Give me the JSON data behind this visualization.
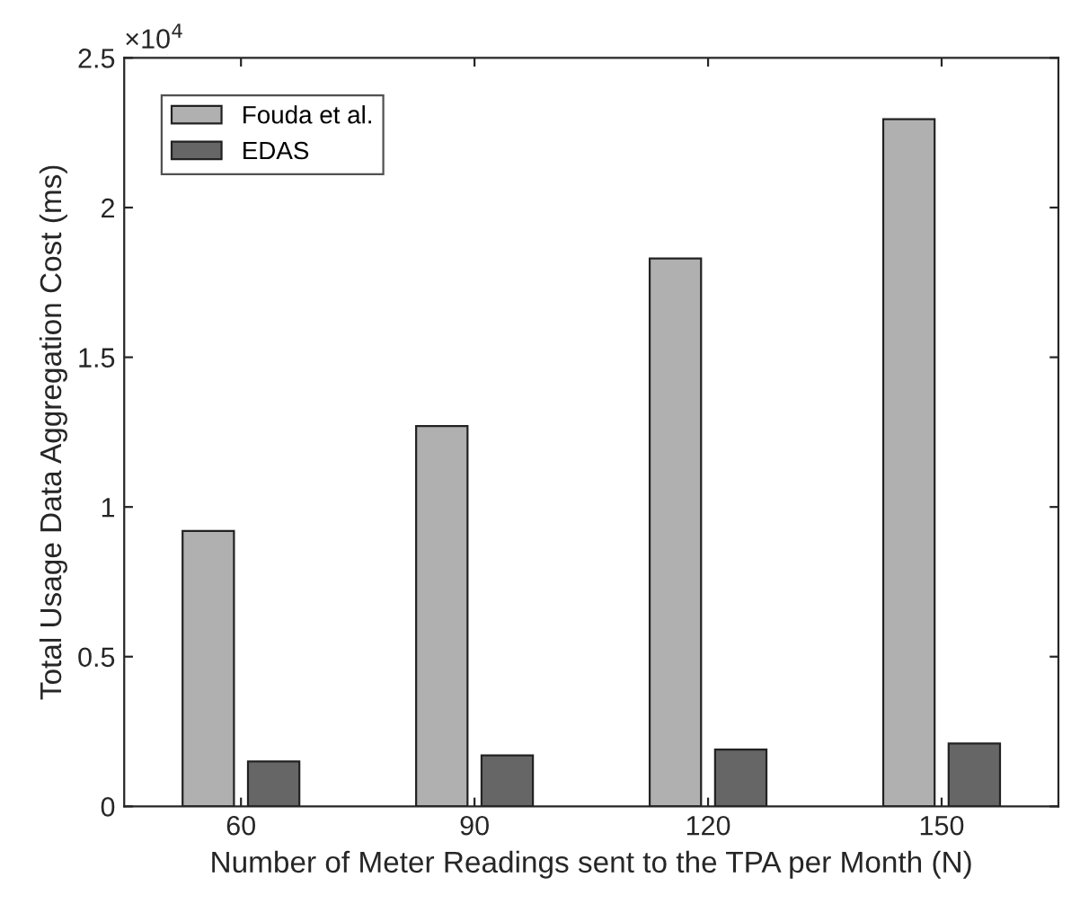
{
  "chart_data": {
    "type": "bar",
    "xlabel": "Number of Meter Readings sent to the TPA per Month (N)",
    "ylabel": "Total Usage Data Aggregation Cost (ms)",
    "categories": [
      "60",
      "90",
      "120",
      "150"
    ],
    "series": [
      {
        "name": "Fouda et al.",
        "color": "#b0b0b0",
        "values": [
          0.92,
          1.27,
          1.83,
          2.295
        ]
      },
      {
        "name": "EDAS",
        "color": "#666666",
        "values": [
          0.15,
          0.17,
          0.19,
          0.21
        ]
      }
    ],
    "ylim": [
      0,
      2.5
    ],
    "yticks": [
      0,
      0.5,
      1,
      1.5,
      2,
      2.5
    ],
    "annotations": [
      "×10$^{4}$"
    ],
    "legend": "top left",
    "grid": false
  }
}
